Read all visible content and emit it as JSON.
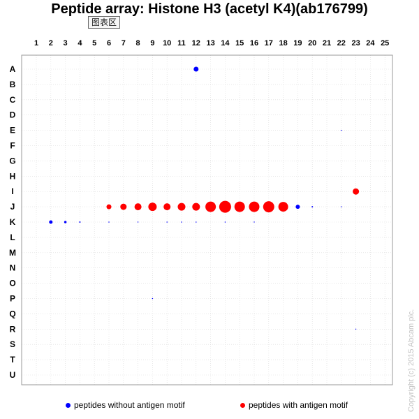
{
  "title": "Peptide array: Histone H3 (acetyl K4)(ab176799)",
  "chart_area_tag": "图表区",
  "copyright": "Copyright (c) 2015 Abcam plc.",
  "colors": {
    "without_motif": "#0000ff",
    "with_motif": "#ff0000",
    "grid": "#d9d9d9",
    "frame": "#9a9a9a"
  },
  "chart_data": {
    "type": "scatter",
    "title": "Peptide array: Histone H3 (acetyl K4)(ab176799)",
    "x_categories": [
      "1",
      "2",
      "3",
      "4",
      "5",
      "6",
      "7",
      "8",
      "9",
      "10",
      "11",
      "12",
      "13",
      "14",
      "15",
      "16",
      "17",
      "18",
      "19",
      "20",
      "21",
      "22",
      "23",
      "24",
      "25"
    ],
    "y_categories": [
      "A",
      "B",
      "C",
      "D",
      "E",
      "F",
      "G",
      "H",
      "I",
      "J",
      "K",
      "L",
      "M",
      "N",
      "O",
      "P",
      "Q",
      "R",
      "S",
      "T",
      "U"
    ],
    "xlabel": "",
    "ylabel": "",
    "grid": true,
    "legend_position": "bottom",
    "series": [
      {
        "name": "peptides without antigen motif",
        "color": "#0000ff",
        "points": [
          {
            "x": "12",
            "y": "A",
            "size": 7
          },
          {
            "x": "22",
            "y": "E",
            "size": 1
          },
          {
            "x": "19",
            "y": "J",
            "size": 6
          },
          {
            "x": "20",
            "y": "J",
            "size": 2
          },
          {
            "x": "22",
            "y": "J",
            "size": 1
          },
          {
            "x": "2",
            "y": "K",
            "size": 5
          },
          {
            "x": "3",
            "y": "K",
            "size": 3.5
          },
          {
            "x": "4",
            "y": "K",
            "size": 2
          },
          {
            "x": "6",
            "y": "K",
            "size": 1.5
          },
          {
            "x": "8",
            "y": "K",
            "size": 1
          },
          {
            "x": "10",
            "y": "K",
            "size": 1.5
          },
          {
            "x": "11",
            "y": "K",
            "size": 1.5
          },
          {
            "x": "12",
            "y": "K",
            "size": 1.5
          },
          {
            "x": "14",
            "y": "K",
            "size": 1.5
          },
          {
            "x": "16",
            "y": "K",
            "size": 1
          },
          {
            "x": "9",
            "y": "P",
            "size": 1.5
          },
          {
            "x": "23",
            "y": "R",
            "size": 1
          }
        ]
      },
      {
        "name": "peptides with antigen motif",
        "color": "#ff0000",
        "points": [
          {
            "x": "23",
            "y": "I",
            "size": 9
          },
          {
            "x": "6",
            "y": "J",
            "size": 7
          },
          {
            "x": "7",
            "y": "J",
            "size": 9
          },
          {
            "x": "8",
            "y": "J",
            "size": 10
          },
          {
            "x": "9",
            "y": "J",
            "size": 12
          },
          {
            "x": "10",
            "y": "J",
            "size": 10
          },
          {
            "x": "11",
            "y": "J",
            "size": 11
          },
          {
            "x": "12",
            "y": "J",
            "size": 11
          },
          {
            "x": "13",
            "y": "J",
            "size": 15
          },
          {
            "x": "14",
            "y": "J",
            "size": 17
          },
          {
            "x": "15",
            "y": "J",
            "size": 15
          },
          {
            "x": "16",
            "y": "J",
            "size": 15
          },
          {
            "x": "17",
            "y": "J",
            "size": 16
          },
          {
            "x": "18",
            "y": "J",
            "size": 14
          }
        ]
      }
    ]
  }
}
